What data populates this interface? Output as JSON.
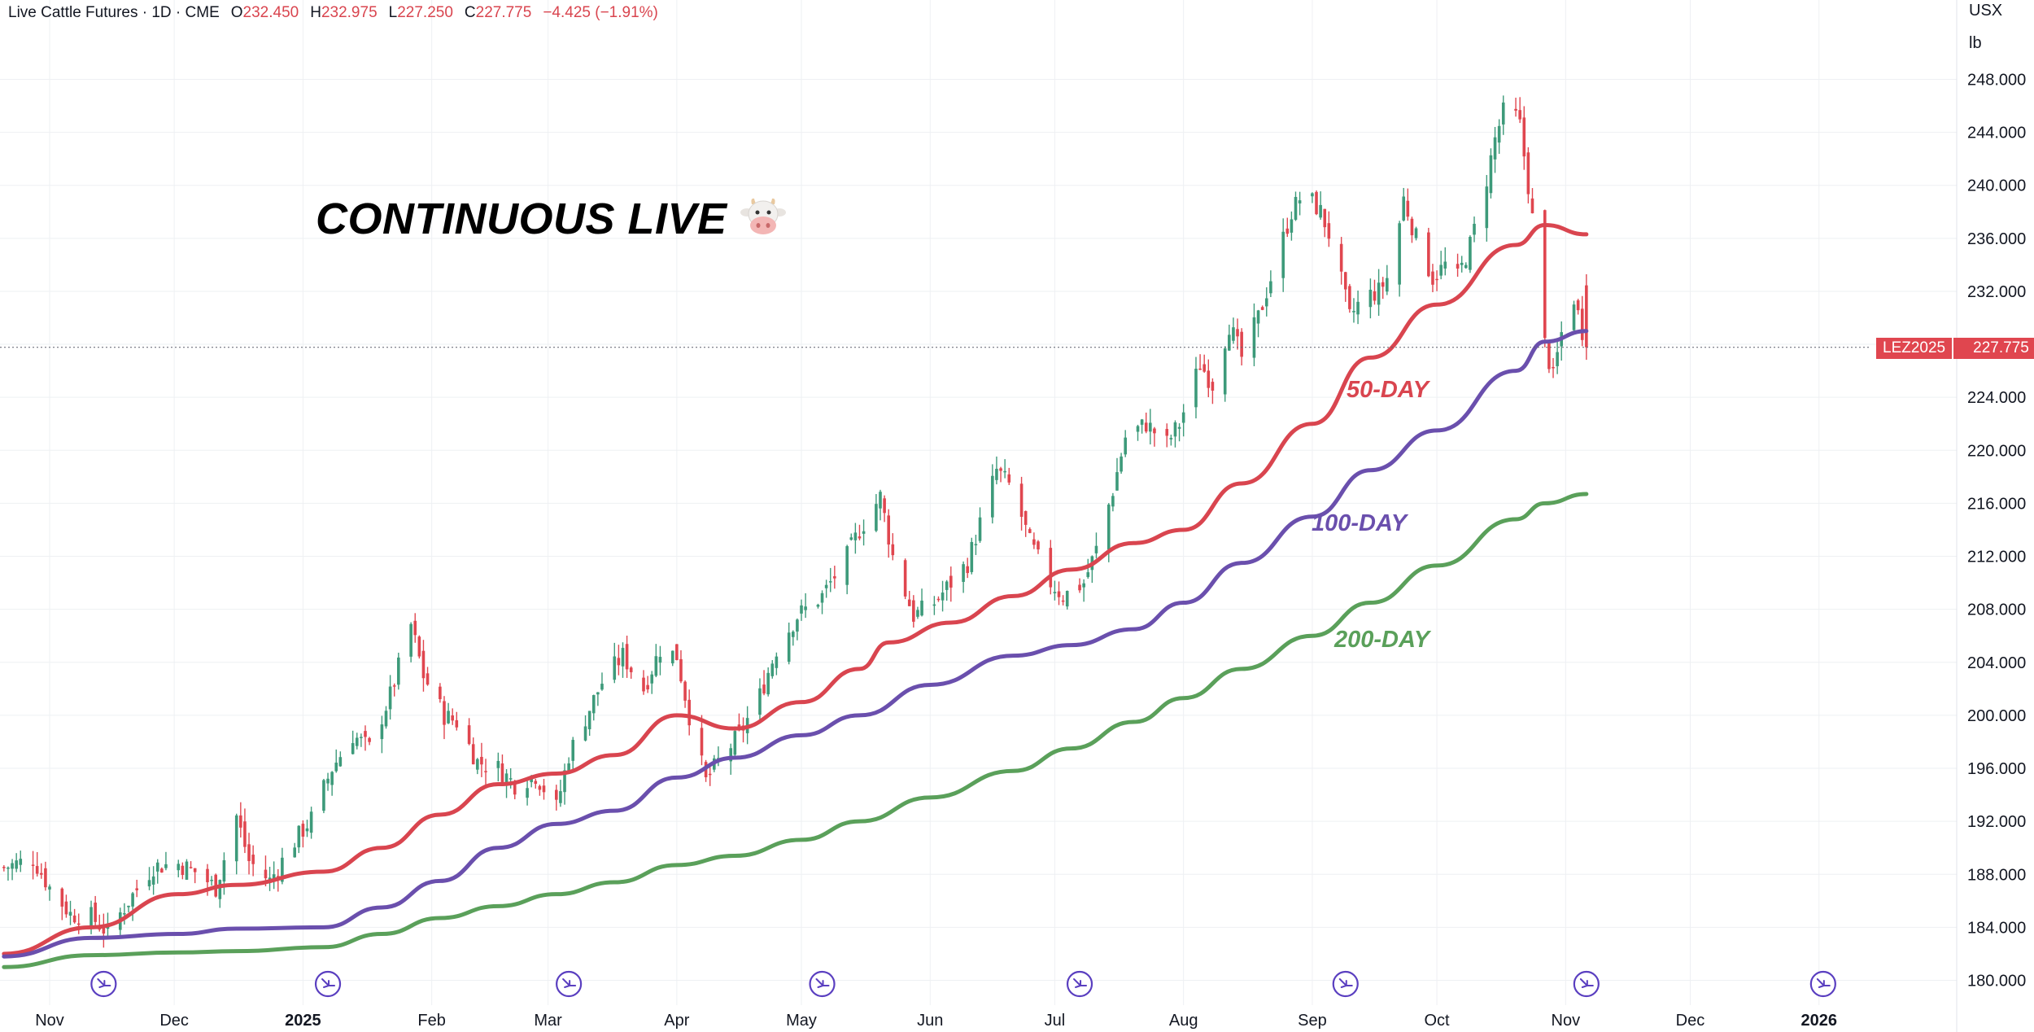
{
  "header": {
    "title": "Live Cattle Futures · 1D · CME",
    "open_label": "O",
    "open": "232.450",
    "high_label": "H",
    "high": "232.975",
    "low_label": "L",
    "low": "227.250",
    "close_label": "C",
    "close": "227.775",
    "change": "−4.425 (−1.91%)"
  },
  "units": {
    "currency": "USX",
    "unit": "lb"
  },
  "overlay": {
    "title": "CONTINUOUS LIVE",
    "emoji_icon": "cow-face-icon"
  },
  "ma_labels": [
    {
      "text": "50-DAY",
      "color": "#d9454f"
    },
    {
      "text": "100-DAY",
      "color": "#6a4fad"
    },
    {
      "text": "200-DAY",
      "color": "#5aa05a"
    }
  ],
  "last_price": {
    "symbol": "LEZ2025",
    "value": "227.775"
  },
  "colors": {
    "up": "#3d9a7a",
    "down": "#e0464f",
    "ma50": "#d9454f",
    "ma100": "#6a4fad",
    "ma200": "#5aa05a",
    "grid": "#eef0f3",
    "event": "#5a3fc0"
  },
  "chart_data": {
    "type": "candlestick",
    "title": "Live Cattle Futures · 1D · CME",
    "ylim": [
      180,
      250
    ],
    "y_ticks": [
      "248.000",
      "244.000",
      "240.000",
      "236.000",
      "232.000",
      "228.000",
      "224.000",
      "220.000",
      "216.000",
      "212.000",
      "208.000",
      "204.000",
      "200.000",
      "196.000",
      "192.000",
      "188.000",
      "184.000",
      "180.000"
    ],
    "x_ticks": [
      "Nov",
      "Dec",
      "2025",
      "Feb",
      "Mar",
      "Apr",
      "May",
      "Jun",
      "Jul",
      "Aug",
      "Sep",
      "Oct",
      "Nov",
      "Dec",
      "2026"
    ],
    "grid": true,
    "close_path": [
      [
        "2024-10-21",
        188.5
      ],
      [
        "2024-10-28",
        189.2
      ],
      [
        "2024-11-01",
        187.0
      ],
      [
        "2024-11-06",
        185.0
      ],
      [
        "2024-11-11",
        184.8
      ],
      [
        "2024-11-15",
        183.6
      ],
      [
        "2024-11-20",
        186.0
      ],
      [
        "2024-11-26",
        188.6
      ],
      [
        "2024-12-02",
        188.8
      ],
      [
        "2024-12-06",
        188.2
      ],
      [
        "2024-12-11",
        187.0
      ],
      [
        "2024-12-16",
        192.4
      ],
      [
        "2024-12-19",
        189.0
      ],
      [
        "2024-12-24",
        187.5
      ],
      [
        "2024-12-30",
        190.5
      ],
      [
        "2025-01-03",
        192.2
      ],
      [
        "2025-01-08",
        196.0
      ],
      [
        "2025-01-13",
        198.5
      ],
      [
        "2025-01-17",
        197.5
      ],
      [
        "2025-01-22",
        201.5
      ],
      [
        "2025-01-27",
        206.8
      ],
      [
        "2025-01-30",
        203.0
      ],
      [
        "2025-02-04",
        200.0
      ],
      [
        "2025-02-07",
        199.5
      ],
      [
        "2025-02-12",
        196.5
      ],
      [
        "2025-02-17",
        196.0
      ],
      [
        "2025-02-21",
        194.8
      ],
      [
        "2025-02-26",
        195.5
      ],
      [
        "2025-03-03",
        193.0
      ],
      [
        "2025-03-06",
        197.0
      ],
      [
        "2025-03-11",
        200.5
      ],
      [
        "2025-03-14",
        202.5
      ],
      [
        "2025-03-19",
        204.5
      ],
      [
        "2025-03-24",
        202.0
      ],
      [
        "2025-03-28",
        205.0
      ],
      [
        "2025-04-01",
        204.5
      ],
      [
        "2025-04-04",
        200.0
      ],
      [
        "2025-04-08",
        195.0
      ],
      [
        "2025-04-11",
        196.5
      ],
      [
        "2025-04-16",
        198.5
      ],
      [
        "2025-04-21",
        201.5
      ],
      [
        "2025-04-25",
        205.0
      ],
      [
        "2025-04-30",
        207.5
      ],
      [
        "2025-05-06",
        209.0
      ],
      [
        "2025-05-12",
        212.0
      ],
      [
        "2025-05-15",
        214.0
      ],
      [
        "2025-05-20",
        216.5
      ],
      [
        "2025-05-23",
        212.0
      ],
      [
        "2025-05-28",
        207.5
      ],
      [
        "2025-06-02",
        208.5
      ],
      [
        "2025-06-06",
        210.0
      ],
      [
        "2025-06-10",
        211.5
      ],
      [
        "2025-06-13",
        214.5
      ],
      [
        "2025-06-17",
        218.5
      ],
      [
        "2025-06-21",
        217.0
      ],
      [
        "2025-06-25",
        213.0
      ],
      [
        "2025-06-30",
        210.0
      ],
      [
        "2025-07-03",
        209.0
      ],
      [
        "2025-07-08",
        210.0
      ],
      [
        "2025-07-11",
        212.5
      ],
      [
        "2025-07-15",
        217.0
      ],
      [
        "2025-07-18",
        221.0
      ],
      [
        "2025-07-23",
        222.0
      ],
      [
        "2025-07-28",
        220.5
      ],
      [
        "2025-07-31",
        222.0
      ],
      [
        "2025-08-05",
        226.5
      ],
      [
        "2025-08-08",
        225.0
      ],
      [
        "2025-08-12",
        229.5
      ],
      [
        "2025-08-15",
        227.0
      ],
      [
        "2025-08-19",
        230.0
      ],
      [
        "2025-08-23",
        234.0
      ],
      [
        "2025-08-27",
        238.0
      ],
      [
        "2025-08-30",
        239.5
      ],
      [
        "2025-09-03",
        238.0
      ],
      [
        "2025-09-06",
        235.5
      ],
      [
        "2025-09-10",
        230.0
      ],
      [
        "2025-09-13",
        231.5
      ],
      [
        "2025-09-17",
        232.0
      ],
      [
        "2025-09-20",
        233.5
      ],
      [
        "2025-09-23",
        239.0
      ],
      [
        "2025-09-26",
        236.0
      ],
      [
        "2025-09-30",
        233.0
      ],
      [
        "2025-10-03",
        234.0
      ],
      [
        "2025-10-06",
        233.0
      ],
      [
        "2025-10-09",
        235.5
      ],
      [
        "2025-10-12",
        239.0
      ],
      [
        "2025-10-15",
        243.5
      ],
      [
        "2025-10-18",
        246.5
      ],
      [
        "2025-10-21",
        244.5
      ],
      [
        "2025-10-23",
        240.0
      ],
      [
        "2025-10-25",
        235.0
      ],
      [
        "2025-10-27",
        228.0
      ],
      [
        "2025-10-29",
        225.5
      ],
      [
        "2025-11-01",
        230.5
      ],
      [
        "2025-11-03",
        231.5
      ],
      [
        "2025-11-06",
        227.775
      ]
    ],
    "series": [
      {
        "name": "50-DAY",
        "points": [
          [
            "2024-10-21",
            182.0
          ],
          [
            "2024-11-11",
            184.0
          ],
          [
            "2024-12-02",
            186.5
          ],
          [
            "2024-12-16",
            187.2
          ],
          [
            "2025-01-06",
            188.2
          ],
          [
            "2025-01-20",
            190.0
          ],
          [
            "2025-02-03",
            192.5
          ],
          [
            "2025-02-17",
            194.8
          ],
          [
            "2025-03-03",
            195.6
          ],
          [
            "2025-03-17",
            197.0
          ],
          [
            "2025-04-01",
            200.0
          ],
          [
            "2025-04-15",
            199.0
          ],
          [
            "2025-05-01",
            201.0
          ],
          [
            "2025-05-15",
            203.5
          ],
          [
            "2025-05-22",
            205.5
          ],
          [
            "2025-06-06",
            207.0
          ],
          [
            "2025-06-21",
            209.0
          ],
          [
            "2025-07-05",
            211.0
          ],
          [
            "2025-07-20",
            213.0
          ],
          [
            "2025-08-01",
            214.0
          ],
          [
            "2025-08-15",
            217.5
          ],
          [
            "2025-09-01",
            222.0
          ],
          [
            "2025-09-15",
            227.0
          ],
          [
            "2025-10-01",
            231.0
          ],
          [
            "2025-10-20",
            235.5
          ],
          [
            "2025-10-27",
            237.0
          ],
          [
            "2025-11-06",
            236.3
          ]
        ]
      },
      {
        "name": "100-DAY",
        "points": [
          [
            "2024-10-21",
            181.8
          ],
          [
            "2024-11-11",
            183.2
          ],
          [
            "2024-12-02",
            183.5
          ],
          [
            "2024-12-16",
            183.9
          ],
          [
            "2025-01-06",
            184.0
          ],
          [
            "2025-01-20",
            185.5
          ],
          [
            "2025-02-03",
            187.5
          ],
          [
            "2025-02-17",
            190.0
          ],
          [
            "2025-03-03",
            191.8
          ],
          [
            "2025-03-17",
            192.8
          ],
          [
            "2025-04-01",
            195.3
          ],
          [
            "2025-04-15",
            196.8
          ],
          [
            "2025-05-01",
            198.5
          ],
          [
            "2025-05-15",
            200.0
          ],
          [
            "2025-06-01",
            202.3
          ],
          [
            "2025-06-21",
            204.5
          ],
          [
            "2025-07-05",
            205.3
          ],
          [
            "2025-07-20",
            206.5
          ],
          [
            "2025-08-01",
            208.5
          ],
          [
            "2025-08-15",
            211.5
          ],
          [
            "2025-09-01",
            215.0
          ],
          [
            "2025-09-15",
            218.5
          ],
          [
            "2025-10-01",
            221.5
          ],
          [
            "2025-10-20",
            226.0
          ],
          [
            "2025-10-27",
            228.2
          ],
          [
            "2025-11-06",
            229.0
          ]
        ]
      },
      {
        "name": "200-DAY",
        "points": [
          [
            "2024-10-21",
            181.0
          ],
          [
            "2024-11-11",
            181.9
          ],
          [
            "2024-12-02",
            182.1
          ],
          [
            "2024-12-16",
            182.2
          ],
          [
            "2025-01-06",
            182.5
          ],
          [
            "2025-01-20",
            183.5
          ],
          [
            "2025-02-03",
            184.7
          ],
          [
            "2025-02-17",
            185.6
          ],
          [
            "2025-03-03",
            186.5
          ],
          [
            "2025-03-17",
            187.4
          ],
          [
            "2025-04-01",
            188.7
          ],
          [
            "2025-04-15",
            189.4
          ],
          [
            "2025-05-01",
            190.6
          ],
          [
            "2025-05-15",
            192.0
          ],
          [
            "2025-06-01",
            193.8
          ],
          [
            "2025-06-21",
            195.8
          ],
          [
            "2025-07-05",
            197.5
          ],
          [
            "2025-07-20",
            199.5
          ],
          [
            "2025-08-01",
            201.3
          ],
          [
            "2025-08-15",
            203.5
          ],
          [
            "2025-09-01",
            206.0
          ],
          [
            "2025-09-15",
            208.5
          ],
          [
            "2025-10-01",
            211.3
          ],
          [
            "2025-10-20",
            214.8
          ],
          [
            "2025-10-27",
            216.0
          ],
          [
            "2025-11-06",
            216.7
          ]
        ]
      }
    ],
    "events_icon": "dividend-arrow-icon",
    "events": [
      "2024-11-14",
      "2025-01-07",
      "2025-03-06",
      "2025-05-06",
      "2025-07-07",
      "2025-09-09",
      "2025-11-06",
      "2026-01-02"
    ]
  }
}
